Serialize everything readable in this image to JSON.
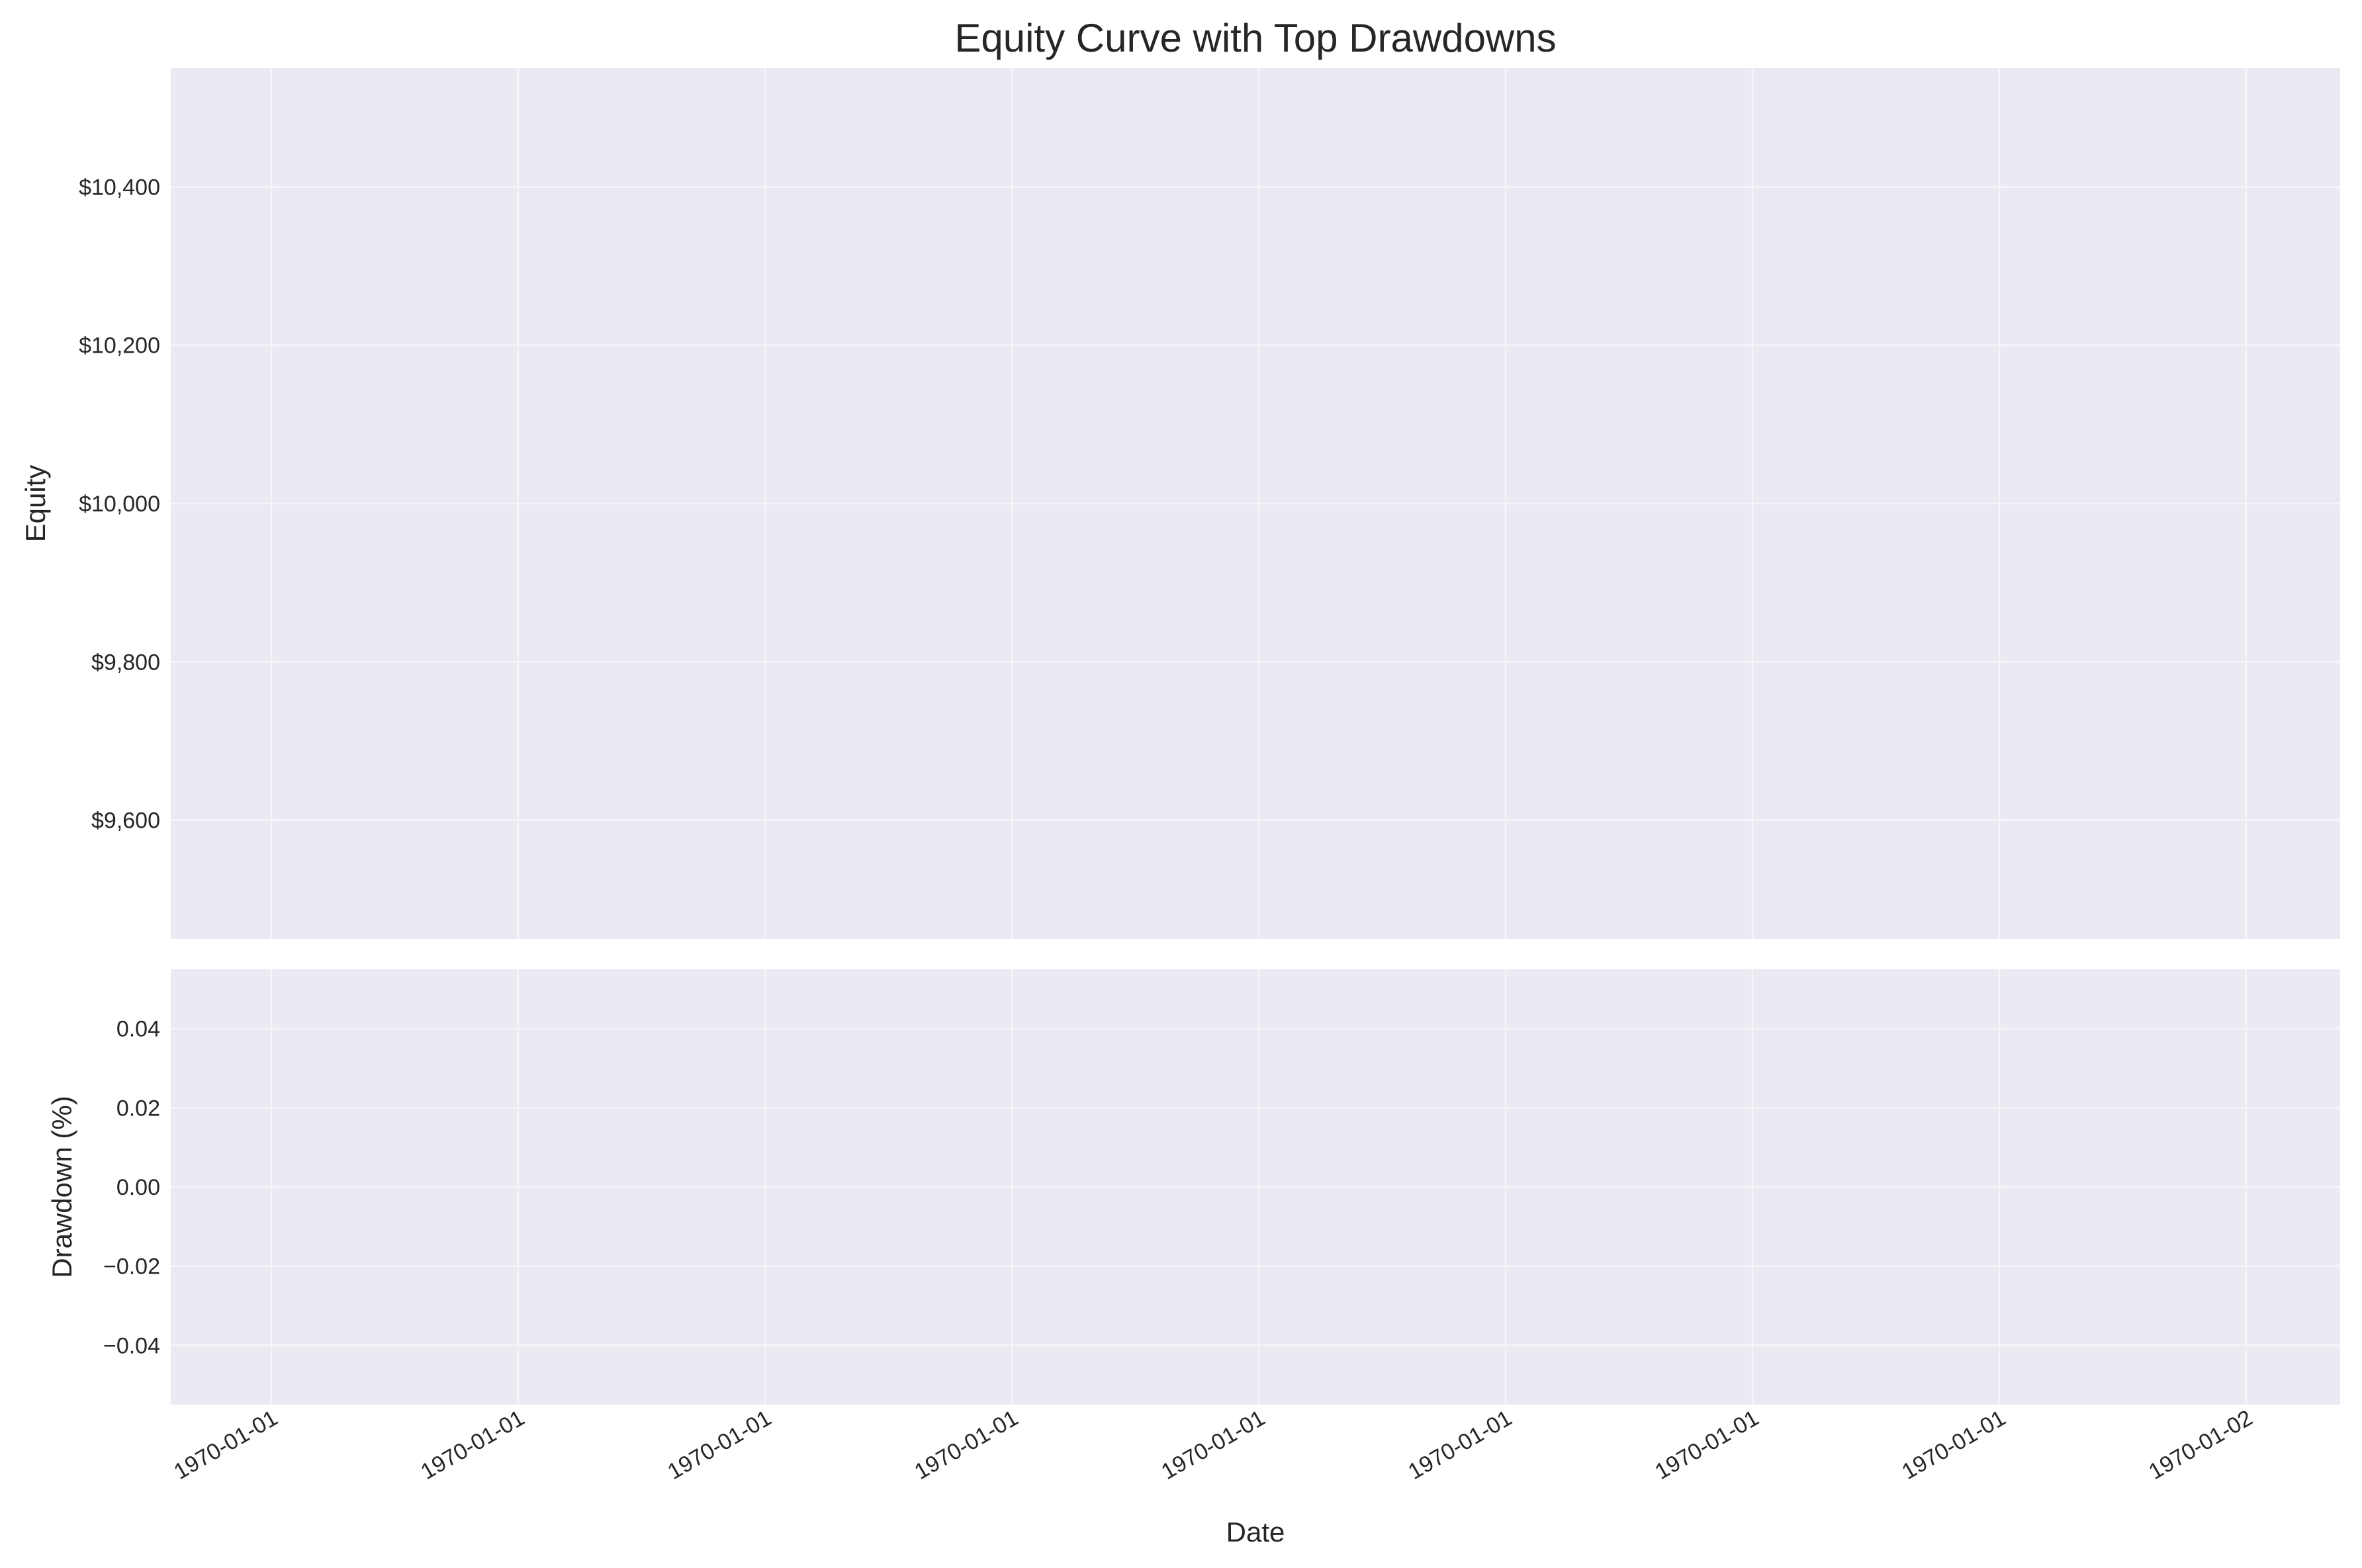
{
  "chart_data": [
    {
      "type": "line",
      "title": "Equity Curve with Top Drawdowns",
      "ylabel": "Equity",
      "ylim": [
        9450,
        10550
      ],
      "y_ticks": [
        9600,
        9800,
        10000,
        10200,
        10400
      ],
      "y_tick_labels": [
        "$9,600",
        "$9,800",
        "$10,000",
        "$10,200",
        "$10,400"
      ],
      "grid": true,
      "series": []
    },
    {
      "type": "area",
      "xlabel": "Date",
      "ylabel": "Drawdown (%)",
      "ylim": [
        -0.055,
        0.055
      ],
      "y_ticks": [
        -0.04,
        -0.02,
        0.0,
        0.02,
        0.04
      ],
      "y_tick_labels": [
        "−0.04",
        "−0.02",
        "0.00",
        "0.02",
        "0.04"
      ],
      "x_tick_labels": [
        "1970-01-01",
        "1970-01-01",
        "1970-01-01",
        "1970-01-01",
        "1970-01-01",
        "1970-01-01",
        "1970-01-01",
        "1970-01-01",
        "1970-01-02"
      ],
      "grid": true,
      "series": []
    }
  ]
}
